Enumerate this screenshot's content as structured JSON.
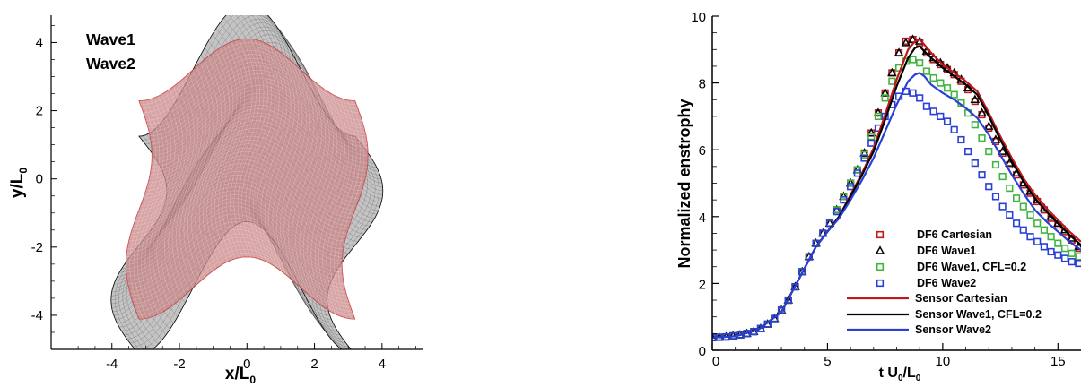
{
  "chart_data": [
    {
      "type": "scatter",
      "title": "",
      "xlabel": "x/L",
      "xlabel_sub": "0",
      "ylabel": "y/L",
      "ylabel_sub": "0",
      "xlim": [
        -5.8,
        5.2
      ],
      "ylim": [
        -5.0,
        4.8
      ],
      "xticks": [
        -4,
        -2,
        0,
        2,
        4
      ],
      "yticks": [
        -4,
        -2,
        0,
        2,
        4
      ],
      "legend_position": "top-left",
      "grid": false,
      "series": [
        {
          "name": "Wave1",
          "color": "#c0191b",
          "fill": "#c98587",
          "amplitude": 0.7
        },
        {
          "name": "Wave2",
          "color": "#000000",
          "fill": "#555555",
          "amplitude": 1.5
        }
      ]
    },
    {
      "type": "line",
      "title": "",
      "xlabel": "t U",
      "xlabel_sub1": "0",
      "xlabel_mid": "/L",
      "xlabel_sub2": "0",
      "ylabel": "Normalized enstrophy",
      "xlim": [
        0,
        16
      ],
      "ylim": [
        0,
        10
      ],
      "xticks": [
        0,
        5,
        10,
        15
      ],
      "yticks": [
        0,
        2,
        4,
        6,
        8,
        10
      ],
      "legend_position": "bottom-right",
      "grid": false,
      "series": [
        {
          "name": "DF6  Cartesian",
          "kind": "marker",
          "marker": "square",
          "color": "#c0191b",
          "x": [
            0,
            0.3,
            0.6,
            0.9,
            1.2,
            1.5,
            1.8,
            2.1,
            2.4,
            2.7,
            3.0,
            3.3,
            3.6,
            3.9,
            4.2,
            4.5,
            4.8,
            5.1,
            5.4,
            5.7,
            6.0,
            6.3,
            6.6,
            6.9,
            7.2,
            7.5,
            7.8,
            8.1,
            8.4,
            8.7,
            9.0,
            9.3,
            9.6,
            9.9,
            10.2,
            10.5,
            10.8,
            11.1,
            11.4,
            11.7,
            12.0,
            12.3,
            12.6,
            12.9,
            13.2,
            13.5,
            13.8,
            14.1,
            14.4,
            14.7,
            15.0,
            15.3,
            15.6,
            15.9
          ],
          "y": [
            0.38,
            0.39,
            0.4,
            0.43,
            0.46,
            0.5,
            0.56,
            0.65,
            0.78,
            0.95,
            1.2,
            1.5,
            1.9,
            2.35,
            2.8,
            3.2,
            3.5,
            3.8,
            4.2,
            4.6,
            5.0,
            5.4,
            5.9,
            6.5,
            7.1,
            7.7,
            8.3,
            8.9,
            9.25,
            9.3,
            9.2,
            8.9,
            8.7,
            8.55,
            8.4,
            8.25,
            8.05,
            7.8,
            7.45,
            7.05,
            6.65,
            6.25,
            5.9,
            5.55,
            5.25,
            4.95,
            4.7,
            4.45,
            4.2,
            3.95,
            3.75,
            3.55,
            3.3,
            3.05
          ]
        },
        {
          "name": "DF6  Wave1",
          "kind": "marker",
          "marker": "triangle",
          "color": "#000000",
          "x": [
            0,
            0.3,
            0.6,
            0.9,
            1.2,
            1.5,
            1.8,
            2.1,
            2.4,
            2.7,
            3.0,
            3.3,
            3.6,
            3.9,
            4.2,
            4.5,
            4.8,
            5.1,
            5.4,
            5.7,
            6.0,
            6.3,
            6.6,
            6.9,
            7.2,
            7.5,
            7.8,
            8.1,
            8.4,
            8.7,
            9.0,
            9.3,
            9.6,
            9.9,
            10.2,
            10.5,
            10.8,
            11.1,
            11.4,
            11.7,
            12.0,
            12.3,
            12.6,
            12.9,
            13.2,
            13.5,
            13.8,
            14.1,
            14.4,
            14.7,
            15.0,
            15.3,
            15.6,
            15.9
          ],
          "y": [
            0.38,
            0.39,
            0.4,
            0.43,
            0.46,
            0.5,
            0.56,
            0.65,
            0.78,
            0.95,
            1.2,
            1.5,
            1.9,
            2.35,
            2.8,
            3.2,
            3.5,
            3.8,
            4.2,
            4.6,
            5.0,
            5.4,
            5.9,
            6.5,
            7.1,
            7.7,
            8.3,
            8.9,
            9.2,
            9.3,
            9.25,
            8.95,
            8.75,
            8.6,
            8.45,
            8.3,
            8.1,
            7.85,
            7.5,
            7.1,
            6.7,
            6.3,
            5.95,
            5.6,
            5.3,
            5.0,
            4.75,
            4.5,
            4.25,
            4.0,
            3.8,
            3.6,
            3.35,
            3.1
          ]
        },
        {
          "name": "DF6  Wave1, CFL=0.2",
          "kind": "marker",
          "marker": "square",
          "color": "#3fb53f",
          "x": [
            0,
            0.3,
            0.6,
            0.9,
            1.2,
            1.5,
            1.8,
            2.1,
            2.4,
            2.7,
            3.0,
            3.3,
            3.6,
            3.9,
            4.2,
            4.5,
            4.8,
            5.1,
            5.4,
            5.7,
            6.0,
            6.3,
            6.6,
            6.9,
            7.2,
            7.5,
            7.8,
            8.1,
            8.4,
            8.7,
            9.0,
            9.3,
            9.6,
            9.9,
            10.2,
            10.5,
            10.8,
            11.1,
            11.4,
            11.7,
            12.0,
            12.3,
            12.6,
            12.9,
            13.2,
            13.5,
            13.8,
            14.1,
            14.4,
            14.7,
            15.0,
            15.3,
            15.6,
            15.9
          ],
          "y": [
            0.38,
            0.39,
            0.4,
            0.43,
            0.46,
            0.5,
            0.56,
            0.65,
            0.78,
            0.95,
            1.2,
            1.5,
            1.9,
            2.35,
            2.8,
            3.2,
            3.5,
            3.8,
            4.2,
            4.6,
            5.0,
            5.4,
            5.85,
            6.4,
            7.0,
            7.55,
            8.05,
            8.45,
            8.65,
            8.7,
            8.6,
            8.35,
            8.15,
            8.0,
            7.85,
            7.65,
            7.4,
            7.1,
            6.75,
            6.35,
            5.95,
            5.55,
            5.2,
            4.85,
            4.55,
            4.3,
            4.05,
            3.8,
            3.6,
            3.4,
            3.2,
            3.05,
            2.9,
            2.8
          ]
        },
        {
          "name": "DF6  Wave2",
          "kind": "marker",
          "marker": "square",
          "color": "#2a3fd6",
          "x": [
            0,
            0.3,
            0.6,
            0.9,
            1.2,
            1.5,
            1.8,
            2.1,
            2.4,
            2.7,
            3.0,
            3.3,
            3.6,
            3.9,
            4.2,
            4.5,
            4.8,
            5.1,
            5.4,
            5.7,
            6.0,
            6.3,
            6.6,
            6.9,
            7.2,
            7.5,
            7.8,
            8.1,
            8.4,
            8.7,
            9.0,
            9.3,
            9.6,
            9.9,
            10.2,
            10.5,
            10.8,
            11.1,
            11.4,
            11.7,
            12.0,
            12.3,
            12.6,
            12.9,
            13.2,
            13.5,
            13.8,
            14.1,
            14.4,
            14.7,
            15.0,
            15.3,
            15.6,
            15.9
          ],
          "y": [
            0.38,
            0.39,
            0.4,
            0.43,
            0.46,
            0.5,
            0.56,
            0.65,
            0.78,
            0.95,
            1.2,
            1.5,
            1.9,
            2.35,
            2.8,
            3.2,
            3.5,
            3.8,
            4.15,
            4.5,
            4.9,
            5.3,
            5.75,
            6.2,
            6.65,
            7.0,
            7.35,
            7.6,
            7.75,
            7.7,
            7.55,
            7.3,
            7.15,
            7.0,
            6.85,
            6.6,
            6.3,
            5.95,
            5.6,
            5.25,
            4.9,
            4.6,
            4.3,
            4.05,
            3.8,
            3.6,
            3.4,
            3.25,
            3.1,
            2.95,
            2.85,
            2.75,
            2.65,
            2.6
          ]
        },
        {
          "name": "Sensor Cartesian",
          "kind": "line",
          "color": "#c0191b",
          "x": [
            0,
            1,
            2,
            3,
            4,
            4.5,
            5,
            5.5,
            6,
            6.5,
            7,
            7.5,
            8,
            8.5,
            8.8,
            9.0,
            9.2,
            9.5,
            10,
            10.5,
            11,
            11.5,
            12,
            12.5,
            13,
            13.5,
            14,
            14.5,
            15,
            15.5,
            16
          ],
          "y": [
            0.38,
            0.42,
            0.62,
            1.15,
            2.45,
            3.1,
            3.55,
            4.0,
            4.65,
            5.3,
            6.05,
            7.05,
            8.1,
            9.0,
            9.25,
            9.3,
            9.15,
            8.9,
            8.55,
            8.3,
            8.05,
            7.75,
            7.1,
            6.4,
            5.75,
            5.15,
            4.65,
            4.25,
            3.9,
            3.55,
            3.25
          ]
        },
        {
          "name": "Sensor Wave1, CFL=0.2",
          "kind": "line",
          "color": "#000000",
          "x": [
            0,
            1,
            2,
            3,
            4,
            4.5,
            5,
            5.5,
            6,
            6.5,
            7,
            7.5,
            8,
            8.5,
            8.8,
            9.0,
            9.2,
            9.5,
            10,
            10.5,
            11,
            11.5,
            12,
            12.5,
            13,
            13.5,
            14,
            14.5,
            15,
            15.5,
            16
          ],
          "y": [
            0.38,
            0.42,
            0.62,
            1.15,
            2.45,
            3.1,
            3.55,
            4.0,
            4.6,
            5.25,
            5.95,
            6.9,
            7.9,
            8.75,
            9.05,
            9.1,
            8.95,
            8.75,
            8.45,
            8.2,
            7.95,
            7.65,
            7.0,
            6.3,
            5.65,
            5.05,
            4.55,
            4.15,
            3.8,
            3.45,
            3.15
          ]
        },
        {
          "name": "Sensor Wave2",
          "kind": "line",
          "color": "#2a3fd6",
          "x": [
            0,
            1,
            2,
            3,
            4,
            4.5,
            5,
            5.5,
            6,
            6.5,
            7,
            7.5,
            8,
            8.5,
            8.8,
            9.0,
            9.2,
            9.5,
            10,
            10.5,
            11,
            11.5,
            12,
            12.5,
            13,
            13.5,
            14,
            14.5,
            15,
            15.5,
            16
          ],
          "y": [
            0.38,
            0.42,
            0.62,
            1.15,
            2.45,
            3.1,
            3.55,
            3.95,
            4.5,
            5.1,
            5.75,
            6.55,
            7.35,
            8.05,
            8.25,
            8.3,
            8.2,
            7.95,
            7.7,
            7.5,
            7.25,
            6.95,
            6.45,
            5.85,
            5.25,
            4.7,
            4.2,
            3.85,
            3.55,
            3.25,
            3.0
          ]
        }
      ]
    }
  ]
}
